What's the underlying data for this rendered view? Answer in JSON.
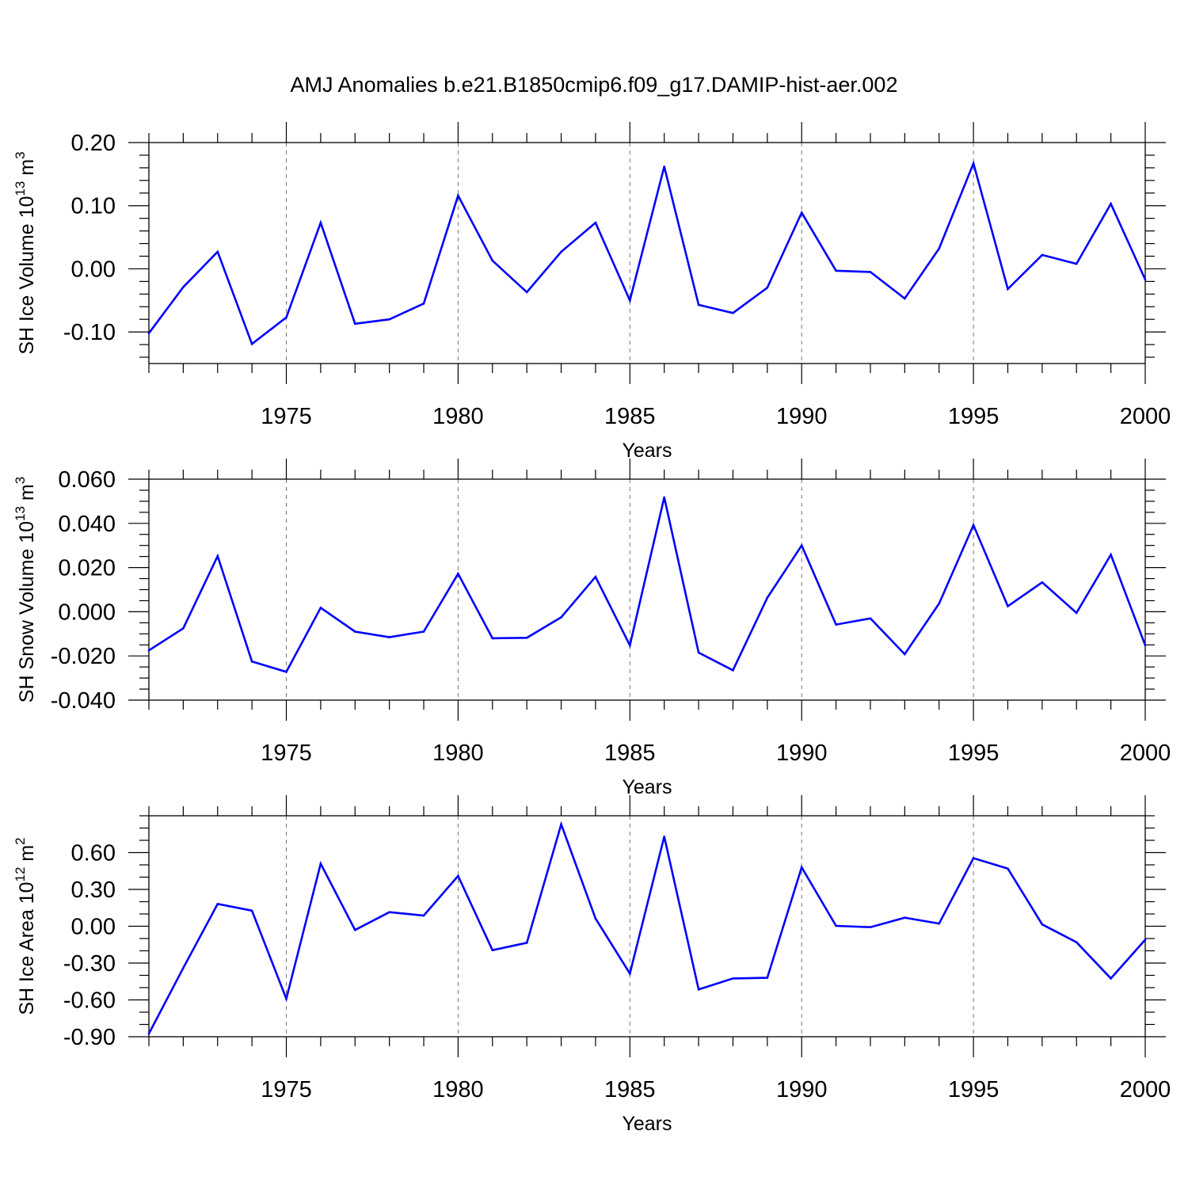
{
  "title": "AMJ Anomalies b.e21.B1850cmip6.f09_g17.DAMIP-hist-aer.002",
  "line_color": "#0000ff",
  "chart_data": [
    {
      "type": "line",
      "xlabel": "Years",
      "ylabel": {
        "main": "SH Ice Volume 10",
        "sup": "13",
        "unit": " m",
        "unit_sup": "3"
      },
      "xlim": [
        1971,
        2000
      ],
      "ylim": [
        -0.15,
        0.2
      ],
      "yticks": [
        -0.1,
        0.0,
        0.1,
        0.2
      ],
      "yticklabels": [
        "-0.10",
        "0.00",
        "0.10",
        "0.20"
      ],
      "yminor_step": 0.02,
      "xticks": [
        1975,
        1980,
        1985,
        1990,
        1995,
        2000
      ],
      "xticklabels": [
        "1975",
        "1980",
        "1985",
        "1990",
        "1995",
        "2000"
      ],
      "grid": "dashed-vertical-at-major-x",
      "x": [
        1971,
        1972,
        1973,
        1974,
        1975,
        1976,
        1977,
        1978,
        1979,
        1980,
        1981,
        1982,
        1983,
        1984,
        1985,
        1986,
        1987,
        1988,
        1989,
        1990,
        1991,
        1992,
        1993,
        1994,
        1995,
        1996,
        1997,
        1998,
        1999,
        2000
      ],
      "values": [
        -0.102,
        -0.029,
        0.027,
        -0.119,
        -0.077,
        0.073,
        -0.087,
        -0.08,
        -0.055,
        0.116,
        0.013,
        -0.037,
        0.027,
        0.073,
        -0.05,
        0.162,
        -0.057,
        -0.07,
        -0.03,
        0.089,
        -0.003,
        -0.005,
        -0.047,
        0.032,
        0.167,
        -0.032,
        0.022,
        0.008,
        0.103,
        -0.017
      ]
    },
    {
      "type": "line",
      "xlabel": "Years",
      "ylabel": {
        "main": "SH Snow Volume 10",
        "sup": "13",
        "unit": " m",
        "unit_sup": "3"
      },
      "xlim": [
        1971,
        2000
      ],
      "ylim": [
        -0.04,
        0.06
      ],
      "yticks": [
        -0.04,
        -0.02,
        0.0,
        0.02,
        0.04,
        0.06
      ],
      "yticklabels": [
        "-0.040",
        "-0.020",
        "0.000",
        "0.020",
        "0.040",
        "0.060"
      ],
      "yminor_step": 0.005,
      "xticks": [
        1975,
        1980,
        1985,
        1990,
        1995,
        2000
      ],
      "xticklabels": [
        "1975",
        "1980",
        "1985",
        "1990",
        "1995",
        "2000"
      ],
      "grid": "dashed-vertical-at-major-x",
      "x": [
        1971,
        1972,
        1973,
        1974,
        1975,
        1976,
        1977,
        1978,
        1979,
        1980,
        1981,
        1982,
        1983,
        1984,
        1985,
        1986,
        1987,
        1988,
        1989,
        1990,
        1991,
        1992,
        1993,
        1994,
        1995,
        1996,
        1997,
        1998,
        1999,
        2000
      ],
      "values": [
        -0.0175,
        -0.0075,
        0.0252,
        -0.0225,
        -0.0272,
        0.0018,
        -0.009,
        -0.0115,
        -0.009,
        0.0172,
        -0.012,
        -0.0118,
        -0.0025,
        0.0158,
        -0.0152,
        0.0518,
        -0.0185,
        -0.0265,
        0.0063,
        0.03,
        -0.0058,
        -0.003,
        -0.0192,
        0.0037,
        0.0392,
        0.0025,
        0.0133,
        -0.0005,
        0.0258,
        -0.0152
      ]
    },
    {
      "type": "line",
      "xlabel": "Years",
      "ylabel": {
        "main": "SH Ice Area 10",
        "sup": "12",
        "unit": " m",
        "unit_sup": "2"
      },
      "xlim": [
        1971,
        2000
      ],
      "ylim": [
        -0.9,
        0.9
      ],
      "yticks": [
        -0.9,
        -0.6,
        -0.3,
        0.0,
        0.3,
        0.6
      ],
      "yticklabels": [
        "-0.90",
        "-0.60",
        "-0.30",
        "0.00",
        "0.30",
        "0.60"
      ],
      "yminor_step": 0.1,
      "xticks": [
        1975,
        1980,
        1985,
        1990,
        1995,
        2000
      ],
      "xticklabels": [
        "1975",
        "1980",
        "1985",
        "1990",
        "1995",
        "2000"
      ],
      "grid": "dashed-vertical-at-major-x",
      "x": [
        1971,
        1972,
        1973,
        1974,
        1975,
        1976,
        1977,
        1978,
        1979,
        1980,
        1981,
        1982,
        1983,
        1984,
        1985,
        1986,
        1987,
        1988,
        1989,
        1990,
        1991,
        1992,
        1993,
        1994,
        1995,
        1996,
        1997,
        1998,
        1999,
        2000
      ],
      "values": [
        -0.875,
        -0.34,
        0.182,
        0.127,
        -0.59,
        0.51,
        -0.03,
        0.115,
        0.087,
        0.41,
        -0.195,
        -0.135,
        0.83,
        0.063,
        -0.385,
        0.73,
        -0.515,
        -0.425,
        -0.42,
        0.48,
        0.003,
        -0.008,
        0.07,
        0.022,
        0.555,
        0.47,
        0.015,
        -0.13,
        -0.425,
        -0.11
      ]
    }
  ]
}
